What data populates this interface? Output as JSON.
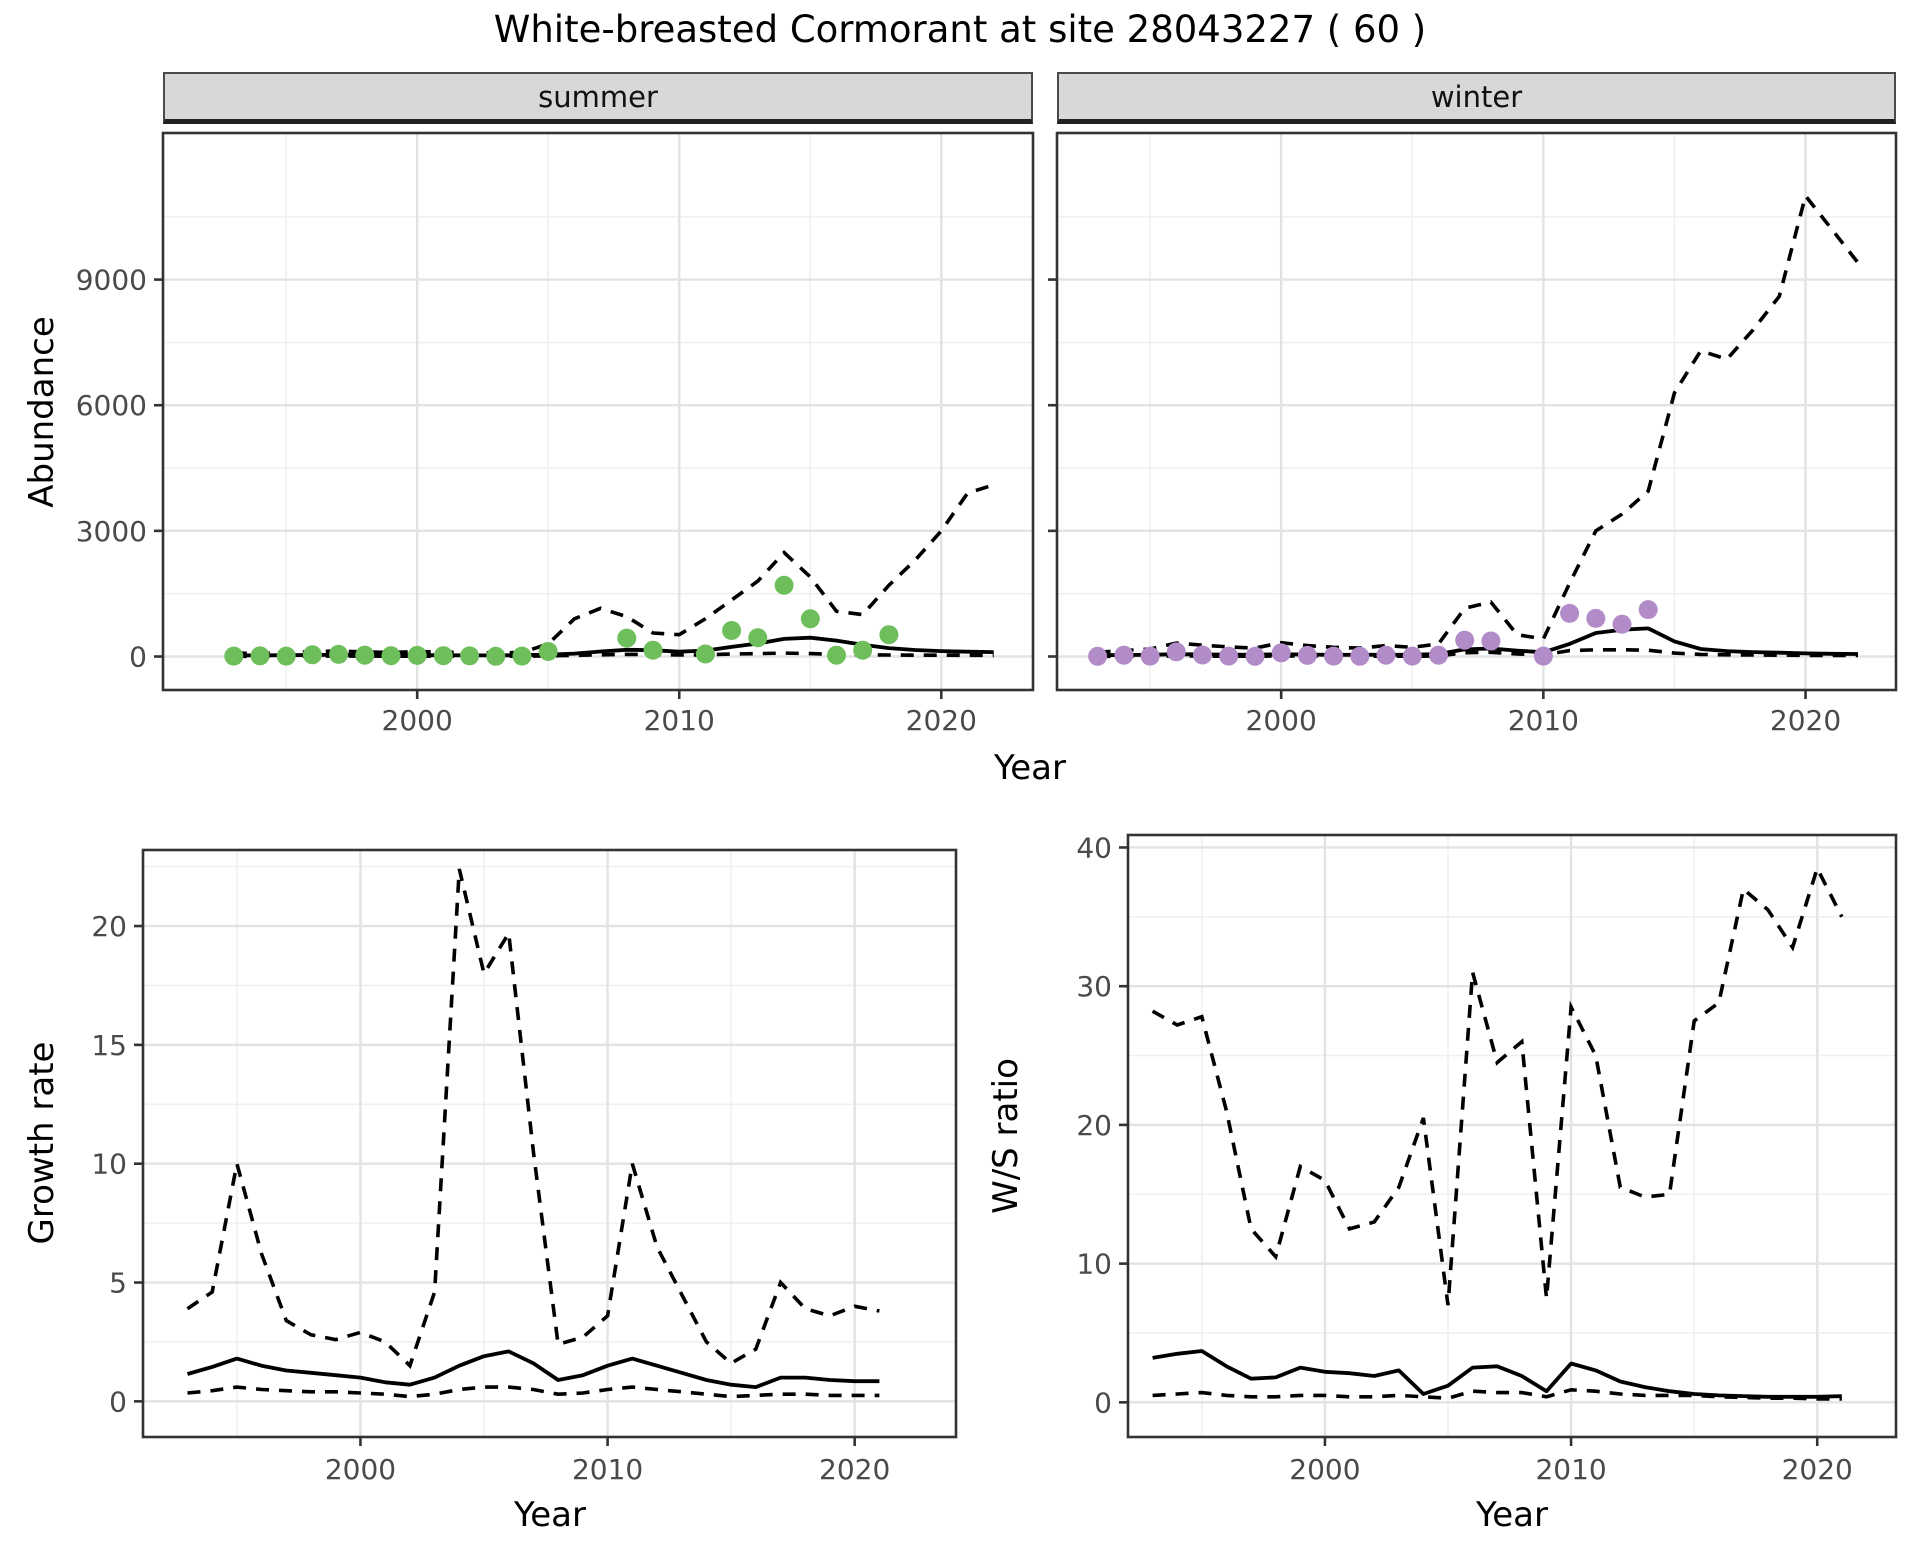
{
  "title": "White-breasted Cormorant at site 28043227 ( 60 )",
  "facets": {
    "summer": "summer",
    "winter": "winter"
  },
  "axes": {
    "top_y_label": "Abundance",
    "top_x_label": "Year",
    "bottom_left_y_label": "Growth rate",
    "bottom_left_x_label": "Year",
    "bottom_right_y_label": "W/S ratio",
    "bottom_right_x_label": "Year"
  },
  "colors": {
    "summer_point": "#6fbe5c",
    "winter_point": "#b28cc8",
    "line": "#000000",
    "grid_major": "#e3e3e3",
    "grid_minor": "#f0f0f0",
    "strip_bg": "#d8d8d8",
    "axis_text": "#4a4a4a",
    "panel_border": "#333333"
  },
  "chart_data": [
    {
      "id": "abundance-summer",
      "type": "line+scatter",
      "facet_label": "summer",
      "ylabel": "Abundance",
      "xlabel": "Year",
      "xlim": [
        1990.3,
        2023.5
      ],
      "ylim": [
        -800,
        12500
      ],
      "x_ticks": [
        2000,
        2010,
        2020
      ],
      "x_minor": [
        1995,
        2005,
        2015
      ],
      "y_ticks": [
        0,
        3000,
        6000,
        9000
      ],
      "y_minor": [
        1500,
        4500,
        7500,
        10500
      ],
      "show_y_tick_labels": true,
      "point_color_key": "summer_point",
      "points": {
        "years": [
          1993,
          1994,
          1995,
          1996,
          1997,
          1998,
          1999,
          2000,
          2001,
          2002,
          2003,
          2004,
          2005,
          2008,
          2009,
          2011,
          2012,
          2013,
          2014,
          2015,
          2016,
          2017,
          2018
        ],
        "values": [
          10,
          15,
          10,
          40,
          50,
          30,
          20,
          25,
          20,
          15,
          5,
          10,
          120,
          440,
          150,
          60,
          620,
          450,
          1700,
          900,
          30,
          150,
          520
        ]
      },
      "fit": {
        "years": [
          1993,
          1994,
          1995,
          1996,
          1997,
          1998,
          1999,
          2000,
          2001,
          2002,
          2003,
          2004,
          2005,
          2006,
          2007,
          2008,
          2009,
          2010,
          2011,
          2012,
          2013,
          2014,
          2015,
          2016,
          2017,
          2018,
          2019,
          2020,
          2021,
          2022
        ],
        "values": [
          25,
          25,
          30,
          35,
          40,
          35,
          30,
          30,
          30,
          25,
          25,
          30,
          45,
          70,
          120,
          160,
          150,
          115,
          140,
          230,
          310,
          420,
          450,
          380,
          280,
          200,
          155,
          130,
          115,
          105
        ]
      },
      "upper": {
        "years": [
          1993,
          1994,
          1995,
          1996,
          1997,
          1998,
          1999,
          2000,
          2001,
          2002,
          2003,
          2004,
          2005,
          2006,
          2007,
          2008,
          2009,
          2010,
          2011,
          2012,
          2013,
          2014,
          2015,
          2016,
          2017,
          2018,
          2019,
          2020,
          2021,
          2022
        ],
        "values": [
          80,
          75,
          85,
          120,
          130,
          110,
          95,
          120,
          105,
          95,
          85,
          95,
          300,
          900,
          1150,
          950,
          560,
          520,
          900,
          1350,
          1800,
          2480,
          1900,
          1080,
          1000,
          1700,
          2300,
          3000,
          3900,
          4100
        ]
      },
      "lower": {
        "years": [
          1993,
          1994,
          1995,
          1996,
          1997,
          1998,
          1999,
          2000,
          2001,
          2002,
          2003,
          2004,
          2005,
          2006,
          2007,
          2008,
          2009,
          2010,
          2011,
          2012,
          2013,
          2014,
          2015,
          2016,
          2017,
          2018,
          2019,
          2020,
          2021,
          2022
        ],
        "values": [
          5,
          5,
          5,
          10,
          10,
          10,
          8,
          8,
          8,
          6,
          6,
          8,
          15,
          25,
          40,
          50,
          45,
          35,
          40,
          60,
          70,
          80,
          70,
          50,
          40,
          35,
          30,
          30,
          28,
          25
        ]
      }
    },
    {
      "id": "abundance-winter",
      "type": "line+scatter",
      "facet_label": "winter",
      "ylabel": "Abundance",
      "xlabel": "Year",
      "xlim": [
        1991.45,
        2023.45
      ],
      "ylim": [
        -800,
        12500
      ],
      "x_ticks": [
        2000,
        2010,
        2020
      ],
      "x_minor": [
        1995,
        2005,
        2015
      ],
      "y_ticks": [
        0,
        3000,
        6000,
        9000
      ],
      "y_minor": [
        1500,
        4500,
        7500,
        10500
      ],
      "show_y_tick_labels": false,
      "point_color_key": "winter_point",
      "points": {
        "years": [
          1993,
          1994,
          1995,
          1996,
          1997,
          1998,
          1999,
          2000,
          2001,
          2002,
          2003,
          2004,
          2005,
          2006,
          2007,
          2008,
          2010,
          2011,
          2012,
          2013,
          2014
        ],
        "values": [
          5,
          30,
          10,
          110,
          35,
          10,
          5,
          85,
          25,
          10,
          5,
          30,
          10,
          30,
          390,
          370,
          10,
          1030,
          910,
          770,
          1120
        ]
      },
      "fit": {
        "years": [
          1993,
          1994,
          1995,
          1996,
          1997,
          1998,
          1999,
          2000,
          2001,
          2002,
          2003,
          2004,
          2005,
          2006,
          2007,
          2008,
          2009,
          2010,
          2011,
          2012,
          2013,
          2014,
          2015,
          2016,
          2017,
          2018,
          2019,
          2020,
          2021,
          2022
        ],
        "values": [
          30,
          35,
          40,
          55,
          50,
          45,
          40,
          55,
          45,
          40,
          38,
          42,
          40,
          60,
          170,
          190,
          140,
          100,
          300,
          560,
          640,
          670,
          360,
          180,
          130,
          105,
          90,
          75,
          65,
          60
        ]
      },
      "upper": {
        "years": [
          1993,
          1994,
          1995,
          1996,
          1997,
          1998,
          1999,
          2000,
          2001,
          2002,
          2003,
          2004,
          2005,
          2006,
          2007,
          2008,
          2009,
          2010,
          2011,
          2012,
          2013,
          2014,
          2015,
          2016,
          2017,
          2018,
          2019,
          2020,
          2021,
          2022
        ],
        "values": [
          100,
          140,
          180,
          320,
          270,
          230,
          200,
          330,
          260,
          220,
          200,
          260,
          220,
          300,
          1150,
          1300,
          520,
          420,
          1750,
          3000,
          3400,
          3950,
          6300,
          7300,
          7100,
          7800,
          8600,
          11000,
          10200,
          9400
        ]
      },
      "lower": {
        "years": [
          1993,
          1994,
          1995,
          1996,
          1997,
          1998,
          1999,
          2000,
          2001,
          2002,
          2003,
          2004,
          2005,
          2006,
          2007,
          2008,
          2009,
          2010,
          2011,
          2012,
          2013,
          2014,
          2015,
          2016,
          2017,
          2018,
          2019,
          2020,
          2021,
          2022
        ],
        "values": [
          2,
          5,
          5,
          15,
          10,
          8,
          6,
          15,
          10,
          8,
          6,
          10,
          8,
          12,
          90,
          100,
          60,
          40,
          140,
          160,
          160,
          150,
          80,
          50,
          40,
          35,
          30,
          25,
          25,
          25
        ]
      }
    },
    {
      "id": "growth-rate",
      "type": "line",
      "facet_label": "",
      "ylabel": "Growth rate",
      "xlabel": "Year",
      "xlim": [
        1991.2,
        2024.1
      ],
      "ylim": [
        -1.5,
        23.2
      ],
      "x_ticks": [
        2000,
        2010,
        2020
      ],
      "x_minor": [
        1995,
        2005,
        2015
      ],
      "y_ticks": [
        0,
        5,
        10,
        15,
        20
      ],
      "y_minor": [
        2.5,
        7.5,
        12.5,
        17.5,
        22.5
      ],
      "show_y_tick_labels": true,
      "fit": {
        "years": [
          1993,
          1994,
          1995,
          1996,
          1997,
          1998,
          1999,
          2000,
          2001,
          2002,
          2003,
          2004,
          2005,
          2006,
          2007,
          2008,
          2009,
          2010,
          2011,
          2012,
          2013,
          2014,
          2015,
          2016,
          2017,
          2018,
          2019,
          2020,
          2021
        ],
        "values": [
          1.15,
          1.45,
          1.8,
          1.5,
          1.3,
          1.2,
          1.1,
          1.0,
          0.8,
          0.7,
          1.0,
          1.5,
          1.9,
          2.1,
          1.6,
          0.9,
          1.1,
          1.5,
          1.8,
          1.5,
          1.2,
          0.9,
          0.7,
          0.6,
          1.0,
          1.0,
          0.9,
          0.85,
          0.85
        ]
      },
      "upper": {
        "years": [
          1993,
          1994,
          1995,
          1996,
          1997,
          1998,
          1999,
          2000,
          2001,
          2002,
          2003,
          2004,
          2005,
          2006,
          2007,
          2008,
          2009,
          2010,
          2011,
          2012,
          2013,
          2014,
          2015,
          2016,
          2017,
          2018,
          2019,
          2020,
          2021
        ],
        "values": [
          3.9,
          4.6,
          10.0,
          6.2,
          3.4,
          2.8,
          2.6,
          2.9,
          2.5,
          1.5,
          4.6,
          22.4,
          18.0,
          19.7,
          10.5,
          2.4,
          2.7,
          3.6,
          10.0,
          6.5,
          4.5,
          2.5,
          1.6,
          2.2,
          5.0,
          3.9,
          3.6,
          4.0,
          3.8
        ]
      },
      "lower": {
        "years": [
          1993,
          1994,
          1995,
          1996,
          1997,
          1998,
          1999,
          2000,
          2001,
          2002,
          2003,
          2004,
          2005,
          2006,
          2007,
          2008,
          2009,
          2010,
          2011,
          2012,
          2013,
          2014,
          2015,
          2016,
          2017,
          2018,
          2019,
          2020,
          2021
        ],
        "values": [
          0.35,
          0.45,
          0.6,
          0.5,
          0.45,
          0.4,
          0.4,
          0.35,
          0.3,
          0.2,
          0.3,
          0.5,
          0.6,
          0.6,
          0.5,
          0.3,
          0.35,
          0.5,
          0.6,
          0.5,
          0.4,
          0.3,
          0.2,
          0.25,
          0.3,
          0.3,
          0.25,
          0.25,
          0.25
        ]
      }
    },
    {
      "id": "ws-ratio",
      "type": "line",
      "facet_label": "",
      "ylabel": "W/S ratio",
      "xlabel": "Year",
      "xlim": [
        1992.0,
        2023.2
      ],
      "ylim": [
        -2.5,
        40.9
      ],
      "x_ticks": [
        2000,
        2010,
        2020
      ],
      "x_minor": [
        1995,
        2005,
        2015
      ],
      "y_ticks": [
        0,
        10,
        20,
        30,
        40
      ],
      "y_minor": [
        5,
        15,
        25,
        35
      ],
      "show_y_tick_labels": true,
      "fit": {
        "years": [
          1993,
          1994,
          1995,
          1996,
          1997,
          1998,
          1999,
          2000,
          2001,
          2002,
          2003,
          2004,
          2005,
          2006,
          2007,
          2008,
          2009,
          2010,
          2011,
          2012,
          2013,
          2014,
          2015,
          2016,
          2017,
          2018,
          2019,
          2020,
          2021
        ],
        "values": [
          3.2,
          3.5,
          3.7,
          2.6,
          1.7,
          1.8,
          2.5,
          2.2,
          2.1,
          1.9,
          2.3,
          0.6,
          1.2,
          2.5,
          2.6,
          1.9,
          0.8,
          2.8,
          2.3,
          1.5,
          1.1,
          0.8,
          0.6,
          0.5,
          0.45,
          0.4,
          0.4,
          0.4,
          0.45
        ]
      },
      "upper": {
        "years": [
          1993,
          1994,
          1995,
          1996,
          1997,
          1998,
          1999,
          2000,
          2001,
          2002,
          2003,
          2004,
          2005,
          2006,
          2007,
          2008,
          2009,
          2010,
          2011,
          2012,
          2013,
          2014,
          2015,
          2016,
          2017,
          2018,
          2019,
          2020,
          2021
        ],
        "values": [
          28.2,
          27.2,
          27.8,
          21.0,
          12.5,
          10.5,
          17.0,
          16.0,
          12.5,
          13.0,
          15.5,
          20.5,
          7.0,
          31.0,
          24.5,
          26.0,
          7.5,
          28.5,
          25.0,
          15.5,
          14.8,
          15.0,
          27.5,
          28.8,
          37.0,
          35.5,
          32.8,
          38.5,
          35.0
        ]
      },
      "lower": {
        "years": [
          1993,
          1994,
          1995,
          1996,
          1997,
          1998,
          1999,
          2000,
          2001,
          2002,
          2003,
          2004,
          2005,
          2006,
          2007,
          2008,
          2009,
          2010,
          2011,
          2012,
          2013,
          2014,
          2015,
          2016,
          2017,
          2018,
          2019,
          2020,
          2021
        ],
        "values": [
          0.5,
          0.6,
          0.7,
          0.5,
          0.4,
          0.4,
          0.5,
          0.5,
          0.4,
          0.4,
          0.5,
          0.4,
          0.3,
          0.8,
          0.7,
          0.7,
          0.4,
          0.9,
          0.8,
          0.6,
          0.5,
          0.5,
          0.5,
          0.4,
          0.35,
          0.3,
          0.3,
          0.25,
          0.25
        ]
      }
    }
  ]
}
